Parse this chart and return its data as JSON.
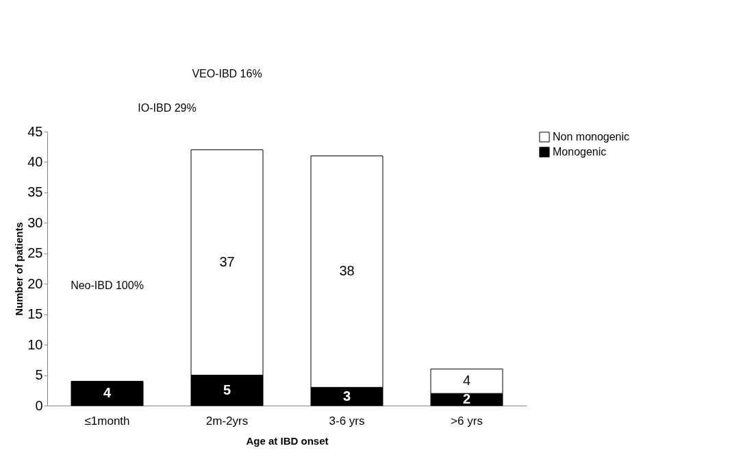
{
  "chart_data": {
    "type": "bar",
    "stacked": true,
    "xlabel": "Age at IBD onset",
    "ylabel": "Number of patients",
    "categories": [
      "≤1month",
      "2m-2yrs",
      "3-6 yrs",
      ">6 yrs"
    ],
    "series": [
      {
        "name": "Monogenic",
        "color": "#000000",
        "values": [
          4,
          5,
          3,
          2
        ]
      },
      {
        "name": "Non monogenic",
        "color": "#ffffff",
        "values": [
          null,
          37,
          38,
          4
        ]
      }
    ],
    "ylim": [
      0,
      45
    ],
    "yticks": [
      0,
      5,
      10,
      15,
      20,
      25,
      30,
      35,
      40,
      45
    ],
    "grid": false,
    "legend": "right",
    "data_labels": true,
    "annotations": [
      "Neo-IBD 100%",
      "IO-IBD 29%",
      "VEO-IBD  16%"
    ]
  }
}
